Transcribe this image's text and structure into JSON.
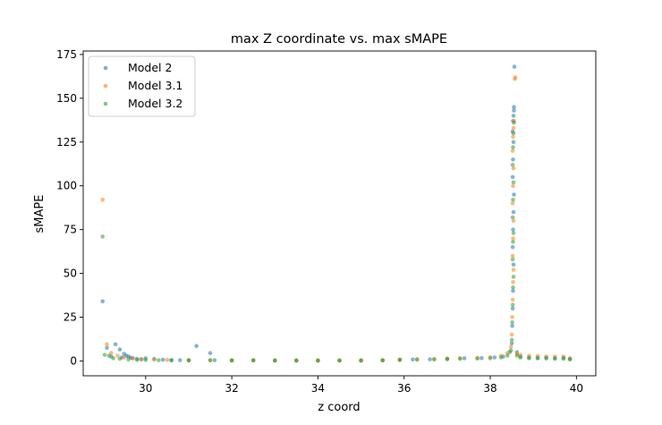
{
  "chart_data": {
    "type": "scatter",
    "title": "max Z coordinate vs. max sMAPE",
    "xlabel": "z coord",
    "ylabel": "sMAPE",
    "xlim": [
      28.55,
      40.45
    ],
    "ylim": [
      -8.5,
      177
    ],
    "xticks": [
      30,
      32,
      34,
      36,
      38,
      40
    ],
    "yticks": [
      0,
      25,
      50,
      75,
      100,
      125,
      150,
      175
    ],
    "grid": false,
    "legend_position": "top-left",
    "series": [
      {
        "name": "Model 2",
        "color": "#1f77b4",
        "points": [
          [
            29.0,
            34
          ],
          [
            29.1,
            7.5
          ],
          [
            29.2,
            2.5
          ],
          [
            29.3,
            9.5
          ],
          [
            29.4,
            6.5
          ],
          [
            29.45,
            2
          ],
          [
            29.5,
            4
          ],
          [
            29.55,
            3
          ],
          [
            29.6,
            2.5
          ],
          [
            29.65,
            1.8
          ],
          [
            29.7,
            1.5
          ],
          [
            29.8,
            1.2
          ],
          [
            29.9,
            0.9
          ],
          [
            30.0,
            1.5
          ],
          [
            30.2,
            1.1
          ],
          [
            30.4,
            0.7
          ],
          [
            30.6,
            0.5
          ],
          [
            30.8,
            0.4
          ],
          [
            31.0,
            0.3
          ],
          [
            31.18,
            8.5
          ],
          [
            31.5,
            4.5
          ],
          [
            31.6,
            0.4
          ],
          [
            32.0,
            0.3
          ],
          [
            32.5,
            0.3
          ],
          [
            33.0,
            0.2
          ],
          [
            33.5,
            0.2
          ],
          [
            34.0,
            0.2
          ],
          [
            34.5,
            0.2
          ],
          [
            35.0,
            0.2
          ],
          [
            35.5,
            0.3
          ],
          [
            35.9,
            0.6
          ],
          [
            36.2,
            0.8
          ],
          [
            36.6,
            0.9
          ],
          [
            37.0,
            1.2
          ],
          [
            37.4,
            1.5
          ],
          [
            37.8,
            1.6
          ],
          [
            38.1,
            2.0
          ],
          [
            38.3,
            2.5
          ],
          [
            38.45,
            5
          ],
          [
            38.5,
            10
          ],
          [
            38.51,
            20
          ],
          [
            38.52,
            30
          ],
          [
            38.53,
            40
          ],
          [
            38.54,
            55
          ],
          [
            38.52,
            65
          ],
          [
            38.53,
            75
          ],
          [
            38.54,
            85
          ],
          [
            38.55,
            95
          ],
          [
            38.52,
            105
          ],
          [
            38.53,
            115
          ],
          [
            38.54,
            125
          ],
          [
            38.52,
            131
          ],
          [
            38.53,
            137
          ],
          [
            38.54,
            140
          ],
          [
            38.55,
            143
          ],
          [
            38.55,
            145
          ],
          [
            38.56,
            168
          ],
          [
            38.62,
            5
          ],
          [
            38.7,
            2.5
          ],
          [
            38.9,
            2.0
          ],
          [
            39.1,
            1.8
          ],
          [
            39.3,
            2.0
          ],
          [
            39.5,
            1.6
          ],
          [
            39.7,
            1.8
          ],
          [
            39.85,
            1.2
          ]
        ]
      },
      {
        "name": "Model 3.1",
        "color": "#ff7f0e",
        "points": [
          [
            29.0,
            92
          ],
          [
            29.1,
            9.5
          ],
          [
            29.2,
            4.5
          ],
          [
            29.35,
            3
          ],
          [
            29.5,
            2
          ],
          [
            29.7,
            1.5
          ],
          [
            29.9,
            1.0
          ],
          [
            30.2,
            0.8
          ],
          [
            30.5,
            0.6
          ],
          [
            31.0,
            0.5
          ],
          [
            31.5,
            0.5
          ],
          [
            32.0,
            0.4
          ],
          [
            32.5,
            0.5
          ],
          [
            33.0,
            0.4
          ],
          [
            33.5,
            0.4
          ],
          [
            34.0,
            0.4
          ],
          [
            34.5,
            0.4
          ],
          [
            35.0,
            0.5
          ],
          [
            35.5,
            0.5
          ],
          [
            35.9,
            0.8
          ],
          [
            36.3,
            1.0
          ],
          [
            36.7,
            1.1
          ],
          [
            37.0,
            1.3
          ],
          [
            37.3,
            1.6
          ],
          [
            37.7,
            1.8
          ],
          [
            38.0,
            2.2
          ],
          [
            38.25,
            3
          ],
          [
            38.4,
            4.5
          ],
          [
            38.48,
            8
          ],
          [
            38.5,
            15
          ],
          [
            38.51,
            25
          ],
          [
            38.52,
            35
          ],
          [
            38.53,
            45
          ],
          [
            38.54,
            52
          ],
          [
            38.52,
            60
          ],
          [
            38.53,
            70
          ],
          [
            38.54,
            80
          ],
          [
            38.52,
            90
          ],
          [
            38.53,
            100
          ],
          [
            38.54,
            110
          ],
          [
            38.52,
            120
          ],
          [
            38.53,
            128
          ],
          [
            38.54,
            133
          ],
          [
            38.55,
            137
          ],
          [
            38.57,
            161
          ],
          [
            38.58,
            162
          ],
          [
            38.62,
            4
          ],
          [
            38.7,
            3.5
          ],
          [
            38.9,
            3.0
          ],
          [
            39.1,
            2.8
          ],
          [
            39.3,
            2.5
          ],
          [
            39.5,
            2.5
          ],
          [
            39.7,
            2.5
          ],
          [
            39.85,
            1.5
          ]
        ]
      },
      {
        "name": "Model 3.2",
        "color": "#2ca02c",
        "points": [
          [
            29.0,
            71
          ],
          [
            29.05,
            3.5
          ],
          [
            29.15,
            3
          ],
          [
            29.25,
            1.5
          ],
          [
            29.4,
            1.2
          ],
          [
            29.6,
            0.8
          ],
          [
            29.8,
            0.6
          ],
          [
            30.0,
            0.5
          ],
          [
            30.3,
            0.4
          ],
          [
            30.6,
            0.3
          ],
          [
            31.0,
            0.3
          ],
          [
            31.5,
            0.3
          ],
          [
            32.0,
            0.2
          ],
          [
            32.5,
            0.3
          ],
          [
            33.0,
            0.2
          ],
          [
            33.5,
            0.2
          ],
          [
            34.0,
            0.2
          ],
          [
            34.5,
            0.2
          ],
          [
            35.0,
            0.2
          ],
          [
            35.5,
            0.3
          ],
          [
            35.9,
            0.6
          ],
          [
            36.3,
            0.7
          ],
          [
            36.7,
            0.8
          ],
          [
            37.0,
            1.0
          ],
          [
            37.3,
            1.2
          ],
          [
            37.7,
            1.3
          ],
          [
            38.0,
            1.5
          ],
          [
            38.25,
            2
          ],
          [
            38.4,
            3
          ],
          [
            38.48,
            6
          ],
          [
            38.5,
            12
          ],
          [
            38.51,
            22
          ],
          [
            38.52,
            32
          ],
          [
            38.53,
            42
          ],
          [
            38.54,
            48
          ],
          [
            38.52,
            58
          ],
          [
            38.53,
            68
          ],
          [
            38.54,
            73
          ],
          [
            38.52,
            82
          ],
          [
            38.53,
            92
          ],
          [
            38.54,
            102
          ],
          [
            38.52,
            112
          ],
          [
            38.53,
            122
          ],
          [
            38.54,
            130
          ],
          [
            38.55,
            136
          ],
          [
            38.62,
            3
          ],
          [
            38.7,
            2
          ],
          [
            38.9,
            1.5
          ],
          [
            39.1,
            1.4
          ],
          [
            39.3,
            1.3
          ],
          [
            39.5,
            1.2
          ],
          [
            39.7,
            1.2
          ],
          [
            39.85,
            0.8
          ]
        ]
      }
    ]
  }
}
